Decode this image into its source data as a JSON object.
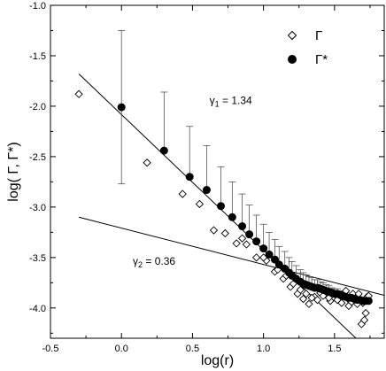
{
  "chart_data": {
    "type": "scatter",
    "xlabel": "log(r)",
    "ylabel": "log( Γ, Γ*)",
    "xlim": [
      -0.5,
      1.85
    ],
    "ylim": [
      -4.3,
      -1.0
    ],
    "xticks": [
      "-0.5",
      "0.0",
      "0.5",
      "1.0",
      "1.5"
    ],
    "xtick_values": [
      -0.5,
      0.0,
      0.5,
      1.0,
      1.5
    ],
    "yticks": [
      "-1.0",
      "-1.5",
      "-2.0",
      "-2.5",
      "-3.0",
      "-3.5",
      "-4.0"
    ],
    "ytick_values": [
      -1.0,
      -1.5,
      -2.0,
      -2.5,
      -3.0,
      -3.5,
      -4.0
    ],
    "grid": false,
    "legend_position": "top-right",
    "series": [
      {
        "name": "Γ",
        "marker": "open-diamond",
        "points": [
          [
            -0.3,
            -1.88
          ],
          [
            0.18,
            -2.56
          ],
          [
            0.43,
            -2.87
          ],
          [
            0.55,
            -2.97
          ],
          [
            0.65,
            -3.23
          ],
          [
            0.73,
            -3.26
          ],
          [
            0.81,
            -3.36
          ],
          [
            0.88,
            -3.37
          ],
          [
            0.95,
            -3.5
          ],
          [
            1.02,
            -3.53
          ],
          [
            1.08,
            -3.64
          ],
          [
            1.14,
            -3.71
          ],
          [
            1.19,
            -3.79
          ],
          [
            1.24,
            -3.86
          ],
          [
            1.28,
            -3.91
          ],
          [
            1.32,
            -3.96
          ],
          [
            1.36,
            -3.89
          ],
          [
            1.4,
            -3.85
          ],
          [
            1.44,
            -3.86
          ],
          [
            1.47,
            -3.93
          ],
          [
            1.5,
            -3.86
          ],
          [
            1.53,
            -3.9
          ],
          [
            1.56,
            -3.88
          ],
          [
            1.58,
            -3.83
          ],
          [
            1.61,
            -3.93
          ],
          [
            1.63,
            -3.86
          ],
          [
            1.65,
            -3.9
          ],
          [
            1.67,
            -3.86
          ],
          [
            1.69,
            -4.16
          ],
          [
            1.71,
            -4.12
          ],
          [
            1.72,
            -4.05
          ],
          [
            1.73,
            -3.89
          ],
          [
            0.85,
            -3.31
          ],
          [
            1.0,
            -3.5
          ],
          [
            1.1,
            -3.62
          ],
          [
            1.16,
            -3.68
          ],
          [
            1.21,
            -3.76
          ],
          [
            1.26,
            -3.82
          ],
          [
            1.3,
            -3.86
          ],
          [
            1.34,
            -3.9
          ],
          [
            1.38,
            -3.92
          ],
          [
            1.42,
            -3.88
          ],
          [
            1.46,
            -3.9
          ],
          [
            1.52,
            -3.92
          ],
          [
            1.55,
            -3.95
          ],
          [
            1.6,
            -3.98
          ],
          [
            1.62,
            -3.94
          ],
          [
            1.66,
            -3.96
          ],
          [
            1.7,
            -3.95
          ],
          [
            1.74,
            -3.88
          ]
        ]
      },
      {
        "name": "Γ*",
        "marker": "filled-circle",
        "points": [
          [
            0.0,
            -2.01,
            0.76
          ],
          [
            0.3,
            -2.44,
            0.58
          ],
          [
            0.48,
            -2.7,
            0.5
          ],
          [
            0.6,
            -2.83,
            0.44
          ],
          [
            0.7,
            -2.99,
            0.39
          ],
          [
            0.78,
            -3.1,
            0.35
          ],
          [
            0.85,
            -3.19,
            0.32
          ],
          [
            0.9,
            -3.27,
            0.29
          ],
          [
            0.95,
            -3.34,
            0.26
          ],
          [
            1.0,
            -3.41,
            0.24
          ],
          [
            1.04,
            -3.47,
            0.22
          ],
          [
            1.08,
            -3.52,
            0.2
          ],
          [
            1.11,
            -3.57,
            0.18
          ],
          [
            1.15,
            -3.61,
            0.17
          ],
          [
            1.18,
            -3.65,
            0.15
          ],
          [
            1.2,
            -3.68,
            0.14
          ],
          [
            1.23,
            -3.71,
            0.13
          ],
          [
            1.26,
            -3.74,
            0.12
          ],
          [
            1.28,
            -3.76,
            0.11
          ],
          [
            1.3,
            -3.77,
            0.1
          ],
          [
            1.32,
            -3.78,
            0.09
          ],
          [
            1.34,
            -3.79,
            0.09
          ],
          [
            1.36,
            -3.8,
            0.08
          ],
          [
            1.38,
            -3.8,
            0.08
          ],
          [
            1.4,
            -3.81,
            0.07
          ],
          [
            1.42,
            -3.82,
            0.07
          ],
          [
            1.44,
            -3.83,
            0.06
          ],
          [
            1.46,
            -3.84,
            0.06
          ],
          [
            1.48,
            -3.85,
            0.05
          ],
          [
            1.5,
            -3.86,
            0.05
          ],
          [
            1.52,
            -3.86,
            0.05
          ],
          [
            1.54,
            -3.87,
            0.04
          ],
          [
            1.56,
            -3.88,
            0.04
          ],
          [
            1.58,
            -3.89,
            0.04
          ],
          [
            1.6,
            -3.9,
            0.03
          ],
          [
            1.62,
            -3.9,
            0.03
          ],
          [
            1.64,
            -3.91,
            0.03
          ],
          [
            1.66,
            -3.92,
            0.02
          ],
          [
            1.68,
            -3.92,
            0.02
          ],
          [
            1.7,
            -3.93,
            0.02
          ],
          [
            1.72,
            -3.93,
            0.02
          ],
          [
            1.74,
            -3.93,
            0.02
          ]
        ]
      }
    ],
    "fit_lines": [
      {
        "label": "γ1 = 1.34",
        "label_main": "γ",
        "label_sub": "1",
        "label_rest": " = 1.34",
        "slope": -1.34,
        "from": [
          -0.3,
          -1.68
        ],
        "to": [
          1.8,
          -4.5
        ]
      },
      {
        "label": "γ2 = 0.36",
        "label_main": "γ",
        "label_sub": "2",
        "label_rest": " = 0.36",
        "slope": -0.36,
        "from": [
          -0.3,
          -3.1
        ],
        "to": [
          1.85,
          -3.875
        ]
      }
    ],
    "annotations": [
      {
        "ref": "fit0",
        "x": 0.62,
        "y": -1.98
      },
      {
        "ref": "fit1",
        "x": 0.08,
        "y": -3.57
      }
    ]
  }
}
